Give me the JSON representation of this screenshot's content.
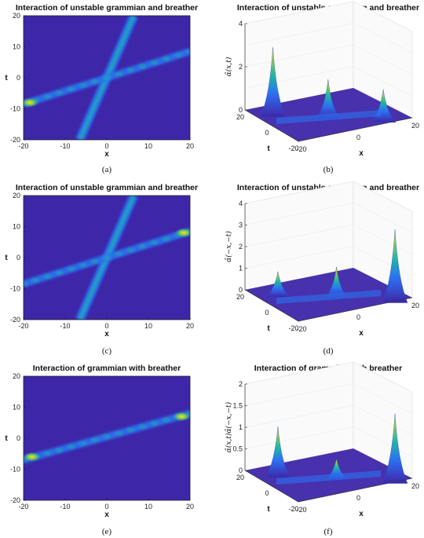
{
  "chart_data": [
    {
      "panel": "a",
      "type": "heatmap",
      "title": "Interaction of unstable grammian and breather",
      "xlabel": "x",
      "ylabel": "t",
      "xlim": [
        -20,
        20
      ],
      "ylim": [
        -20,
        20
      ],
      "xticks": [
        "-20",
        "-10",
        "0",
        "10",
        "20"
      ],
      "yticks": [
        "20",
        "10",
        "0",
        "-10",
        "-20"
      ],
      "caption": "(a)",
      "colormap": [
        "#3e26a8",
        "#2c73f2",
        "#1fb8a0",
        "#86cd4c",
        "#fadc25"
      ],
      "features": {
        "soliton_line": [
          [
            -6.5,
            -20
          ],
          [
            6.5,
            20
          ]
        ],
        "breather_line": [
          [
            -20,
            -8.5
          ],
          [
            20,
            8.5
          ]
        ],
        "breather_peak": [
          -18.5,
          -8
        ]
      }
    },
    {
      "panel": "b",
      "type": "surface",
      "title": "Interaction of unstable grammian and breather",
      "xlabel": "x",
      "ylabel": "t",
      "zlabel": "α̂(x,t)",
      "xticks": [
        "-20",
        "0",
        "20"
      ],
      "yticks": [
        "20",
        "0",
        "-20"
      ],
      "zticks": [
        "0",
        "2",
        "4"
      ],
      "zlim": [
        0,
        4
      ],
      "caption": "(b)"
    },
    {
      "panel": "c",
      "type": "heatmap",
      "title": "Interaction of unstable grammian and breather",
      "xlabel": "x",
      "ylabel": "t",
      "xlim": [
        -20,
        20
      ],
      "ylim": [
        -20,
        20
      ],
      "xticks": [
        "-20",
        "-10",
        "0",
        "10",
        "20"
      ],
      "yticks": [
        "20",
        "10",
        "0",
        "-10",
        "-20"
      ],
      "caption": "(c)",
      "features": {
        "soliton_line": [
          [
            -6.5,
            -20
          ],
          [
            6.5,
            20
          ]
        ],
        "breather_line": [
          [
            -20,
            -8.5
          ],
          [
            20,
            8.5
          ]
        ],
        "breather_peak": [
          18.5,
          8
        ]
      }
    },
    {
      "panel": "d",
      "type": "surface",
      "title": "Interaction of unstable grammian and breather",
      "xlabel": "x",
      "ylabel": "t",
      "zlabel": "α̂(−x,−t)",
      "xticks": [
        "-20",
        "0",
        "20"
      ],
      "yticks": [
        "20",
        "0",
        "-20"
      ],
      "zticks": [
        "0",
        "1",
        "2",
        "3",
        "4"
      ],
      "zlim": [
        0,
        4
      ],
      "caption": "(d)"
    },
    {
      "panel": "e",
      "type": "heatmap",
      "title": "Interaction of grammian with breather",
      "xlabel": "x",
      "ylabel": "t",
      "xlim": [
        -20,
        20
      ],
      "ylim": [
        -20,
        20
      ],
      "xticks": [
        "-20",
        "-10",
        "0",
        "10",
        "20"
      ],
      "yticks": [
        "20",
        "10",
        "0",
        "-10",
        "-20"
      ],
      "caption": "(e)",
      "features": {
        "breather_line": [
          [
            -20,
            -7
          ],
          [
            20,
            8
          ]
        ],
        "peaks": [
          [
            -18,
            -6
          ],
          [
            18,
            7
          ]
        ]
      }
    },
    {
      "panel": "f",
      "type": "surface",
      "title": "Interaction of grammian with breather",
      "xlabel": "x",
      "ylabel": "t",
      "zlabel": "α̂(x,t)α̂(−x,−t)",
      "xticks": [
        "-20",
        "0",
        "20"
      ],
      "yticks": [
        "20",
        "0",
        "-20"
      ],
      "zticks": [
        "0",
        "0.5",
        "1",
        "1.5",
        "2"
      ],
      "zlim": [
        0,
        2
      ],
      "caption": "(f)"
    }
  ]
}
